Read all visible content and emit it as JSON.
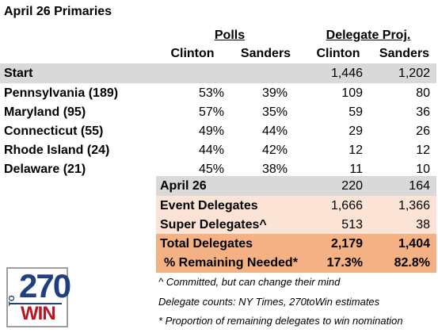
{
  "title": "April 26 Primaries",
  "headers": {
    "polls": "Polls",
    "delegate_proj": "Delegate Proj.",
    "clinton": "Clinton",
    "sanders": "Sanders"
  },
  "start": {
    "label": "Start",
    "clinton": "1,446",
    "sanders": "1,202"
  },
  "states": [
    {
      "name": "Pennsylvania (189)",
      "poll_clinton": "53%",
      "poll_sanders": "39%",
      "del_clinton": "109",
      "del_sanders": "80"
    },
    {
      "name": "Maryland (95)",
      "poll_clinton": "57%",
      "poll_sanders": "35%",
      "del_clinton": "59",
      "del_sanders": "36"
    },
    {
      "name": "Connecticut (55)",
      "poll_clinton": "49%",
      "poll_sanders": "44%",
      "del_clinton": "29",
      "del_sanders": "26"
    },
    {
      "name": "Rhode Island (24)",
      "poll_clinton": "44%",
      "poll_sanders": "42%",
      "del_clinton": "12",
      "del_sanders": "12"
    },
    {
      "name": "Delaware (21)",
      "poll_clinton": "45%",
      "poll_sanders": "38%",
      "del_clinton": "11",
      "del_sanders": "10"
    }
  ],
  "summary": {
    "april": {
      "label": "April 26",
      "clinton": "220",
      "sanders": "164"
    },
    "event": {
      "label": "Event Delegates",
      "clinton": "1,666",
      "sanders": "1,366"
    },
    "super": {
      "label": "Super Delegates^",
      "clinton": "513",
      "sanders": "38"
    },
    "total": {
      "label": "Total Delegates",
      "clinton": "2,179",
      "sanders": "1,404"
    },
    "remaining": {
      "label": "% Remaining Needed*",
      "clinton": "17.3%",
      "sanders": "82.8%"
    }
  },
  "notes": [
    "^ Committed, but can change their mind",
    "Delegate counts: NY Times, 270toWin estimates",
    "* Proportion of remaining delegates to win nomination"
  ],
  "logo": {
    "top": "270",
    "side": "TO",
    "bottom": "WIN"
  },
  "colors": {
    "grey": "#d9d9d9",
    "peach": "#fbe4d5",
    "orange": "#f4b183",
    "logo_blue": "#1f3f7f",
    "logo_red": "#c1121f"
  }
}
